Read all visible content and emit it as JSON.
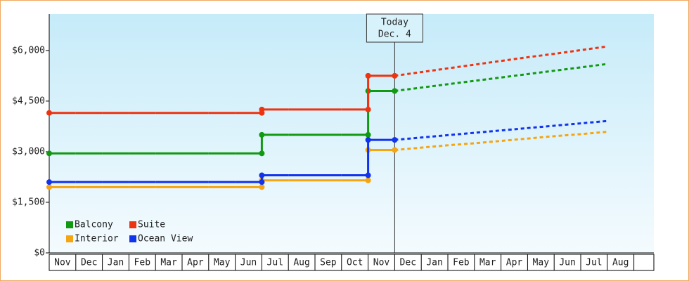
{
  "chart_data": {
    "type": "step-line",
    "categories": [
      "Nov",
      "Dec",
      "Jan",
      "Feb",
      "Mar",
      "Apr",
      "May",
      "Jun",
      "Jul",
      "Aug",
      "Sep",
      "Oct",
      "Nov",
      "Dec",
      "Jan",
      "Feb",
      "Mar",
      "Apr",
      "May",
      "Jun",
      "Jul",
      "Aug"
    ],
    "dashed_from": "Dec",
    "annotation": [
      "Today",
      "Dec. 4"
    ],
    "ylim": [
      0,
      7080
    ],
    "yticks": [
      {
        "value": 0,
        "label": "$0"
      },
      {
        "value": 1500,
        "label": "$1,500"
      },
      {
        "value": 3000,
        "label": "$3,000"
      },
      {
        "value": 4500,
        "label": "$4,500"
      },
      {
        "value": 6000,
        "label": "$6,000"
      }
    ],
    "series": [
      {
        "name": "Balcony",
        "color": "#119911",
        "values": [
          2950,
          2950,
          2950,
          2950,
          2950,
          2950,
          2950,
          2950,
          3500,
          3500,
          3500,
          3500,
          4800,
          4800,
          4900,
          5000,
          5100,
          5200,
          5300,
          5400,
          5500,
          5600
        ]
      },
      {
        "name": "Suite",
        "color": "#ee3311",
        "values": [
          4150,
          4150,
          4150,
          4150,
          4150,
          4150,
          4150,
          4150,
          4250,
          4250,
          4250,
          4250,
          5250,
          5250,
          5360,
          5470,
          5580,
          5690,
          5800,
          5900,
          6010,
          6120
        ]
      },
      {
        "name": "Interior",
        "color": "#f5a511",
        "values": [
          1950,
          1950,
          1950,
          1950,
          1950,
          1950,
          1950,
          1950,
          2150,
          2150,
          2150,
          2150,
          3050,
          3050,
          3120,
          3190,
          3250,
          3320,
          3390,
          3460,
          3520,
          3590
        ]
      },
      {
        "name": "Ocean View",
        "color": "#1133ee",
        "values": [
          2100,
          2100,
          2100,
          2100,
          2100,
          2100,
          2100,
          2100,
          2300,
          2300,
          2300,
          2300,
          3350,
          3350,
          3420,
          3490,
          3560,
          3630,
          3700,
          3770,
          3840,
          3910
        ]
      }
    ]
  }
}
